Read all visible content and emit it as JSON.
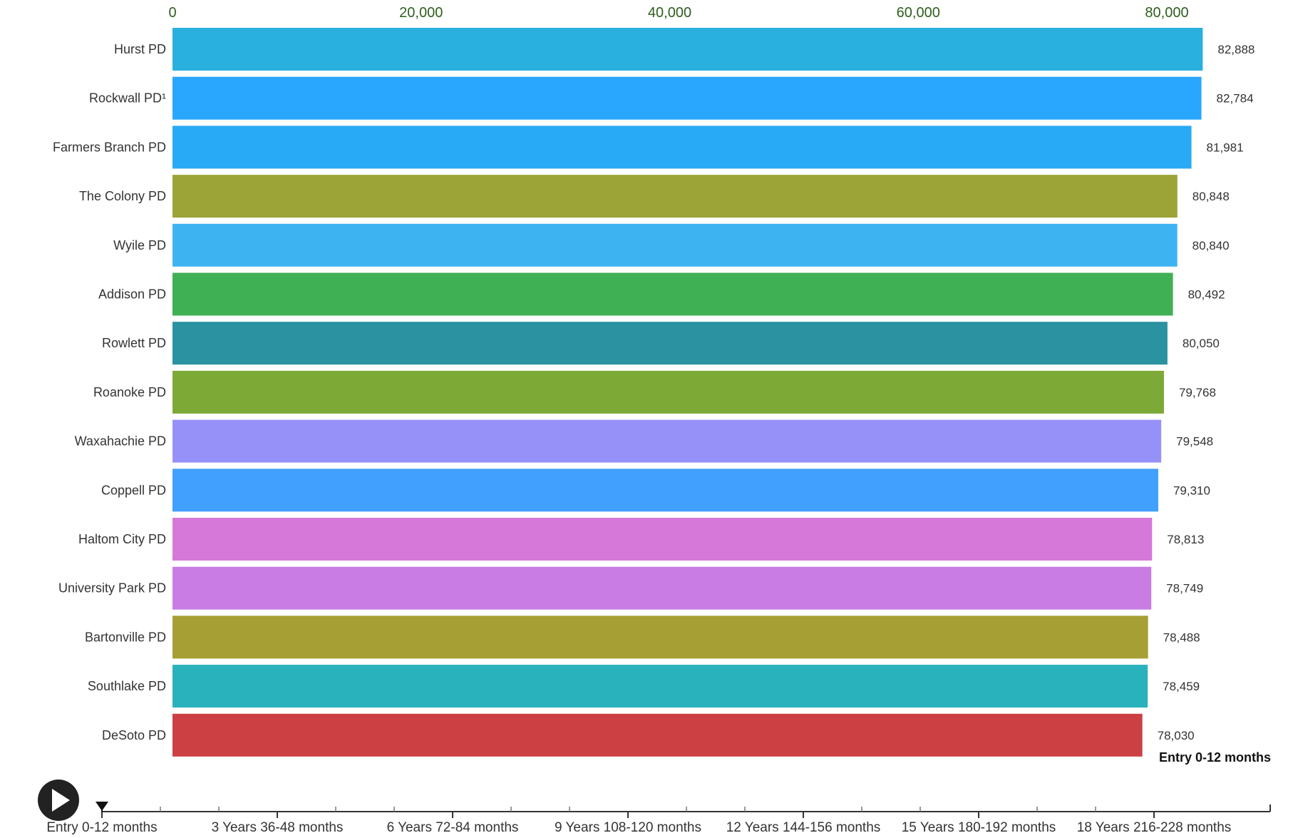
{
  "chart_data": {
    "type": "bar",
    "orientation": "horizontal",
    "x_ticks": [
      0,
      20000,
      40000,
      60000,
      80000
    ],
    "x_tick_labels": [
      "0",
      "20,000",
      "40,000",
      "60,000",
      "80,000"
    ],
    "xlim": [
      0,
      80000
    ],
    "grid": false,
    "categories": [
      "Hurst PD",
      "Rockwall PD¹",
      "Farmers Branch PD",
      "The Colony PD",
      "Wyile PD",
      "Addison PD",
      "Rowlett PD",
      "Roanoke PD",
      "Waxahachie PD",
      "Coppell PD",
      "Haltom City PD",
      "University Park PD",
      "Bartonville PD",
      "Southlake PD",
      "DeSoto PD"
    ],
    "values": [
      82888,
      82784,
      81981,
      80848,
      80840,
      80492,
      80050,
      79768,
      79548,
      79310,
      78813,
      78749,
      78488,
      78459,
      78030
    ],
    "value_labels": [
      "82,888",
      "82,784",
      "81,981",
      "80,848",
      "80,840",
      "80,492",
      "80,050",
      "79,768",
      "79,548",
      "79,310",
      "78,813",
      "78,749",
      "78,488",
      "78,459",
      "78,030"
    ],
    "colors": [
      "#29b0df",
      "#29a6fd",
      "#29aaf6",
      "#9ca437",
      "#3db3f2",
      "#3fb054",
      "#2a92a0",
      "#7daa37",
      "#9691f9",
      "#419ffe",
      "#d678d9",
      "#c97de4",
      "#a6a034",
      "#29b2bc",
      "#cc3f43"
    ],
    "current_frame_label": "Entry 0-12 months"
  },
  "timeline": {
    "labels": [
      "Entry 0-12 months",
      "3 Years 36-48 months",
      "6 Years 72-84 months",
      "9 Years 108-120 months",
      "12 Years 144-156 months",
      "15 Years 180-192 months",
      "18 Years 216-228 months"
    ],
    "current_index": 0,
    "play_icon": "play-icon"
  }
}
